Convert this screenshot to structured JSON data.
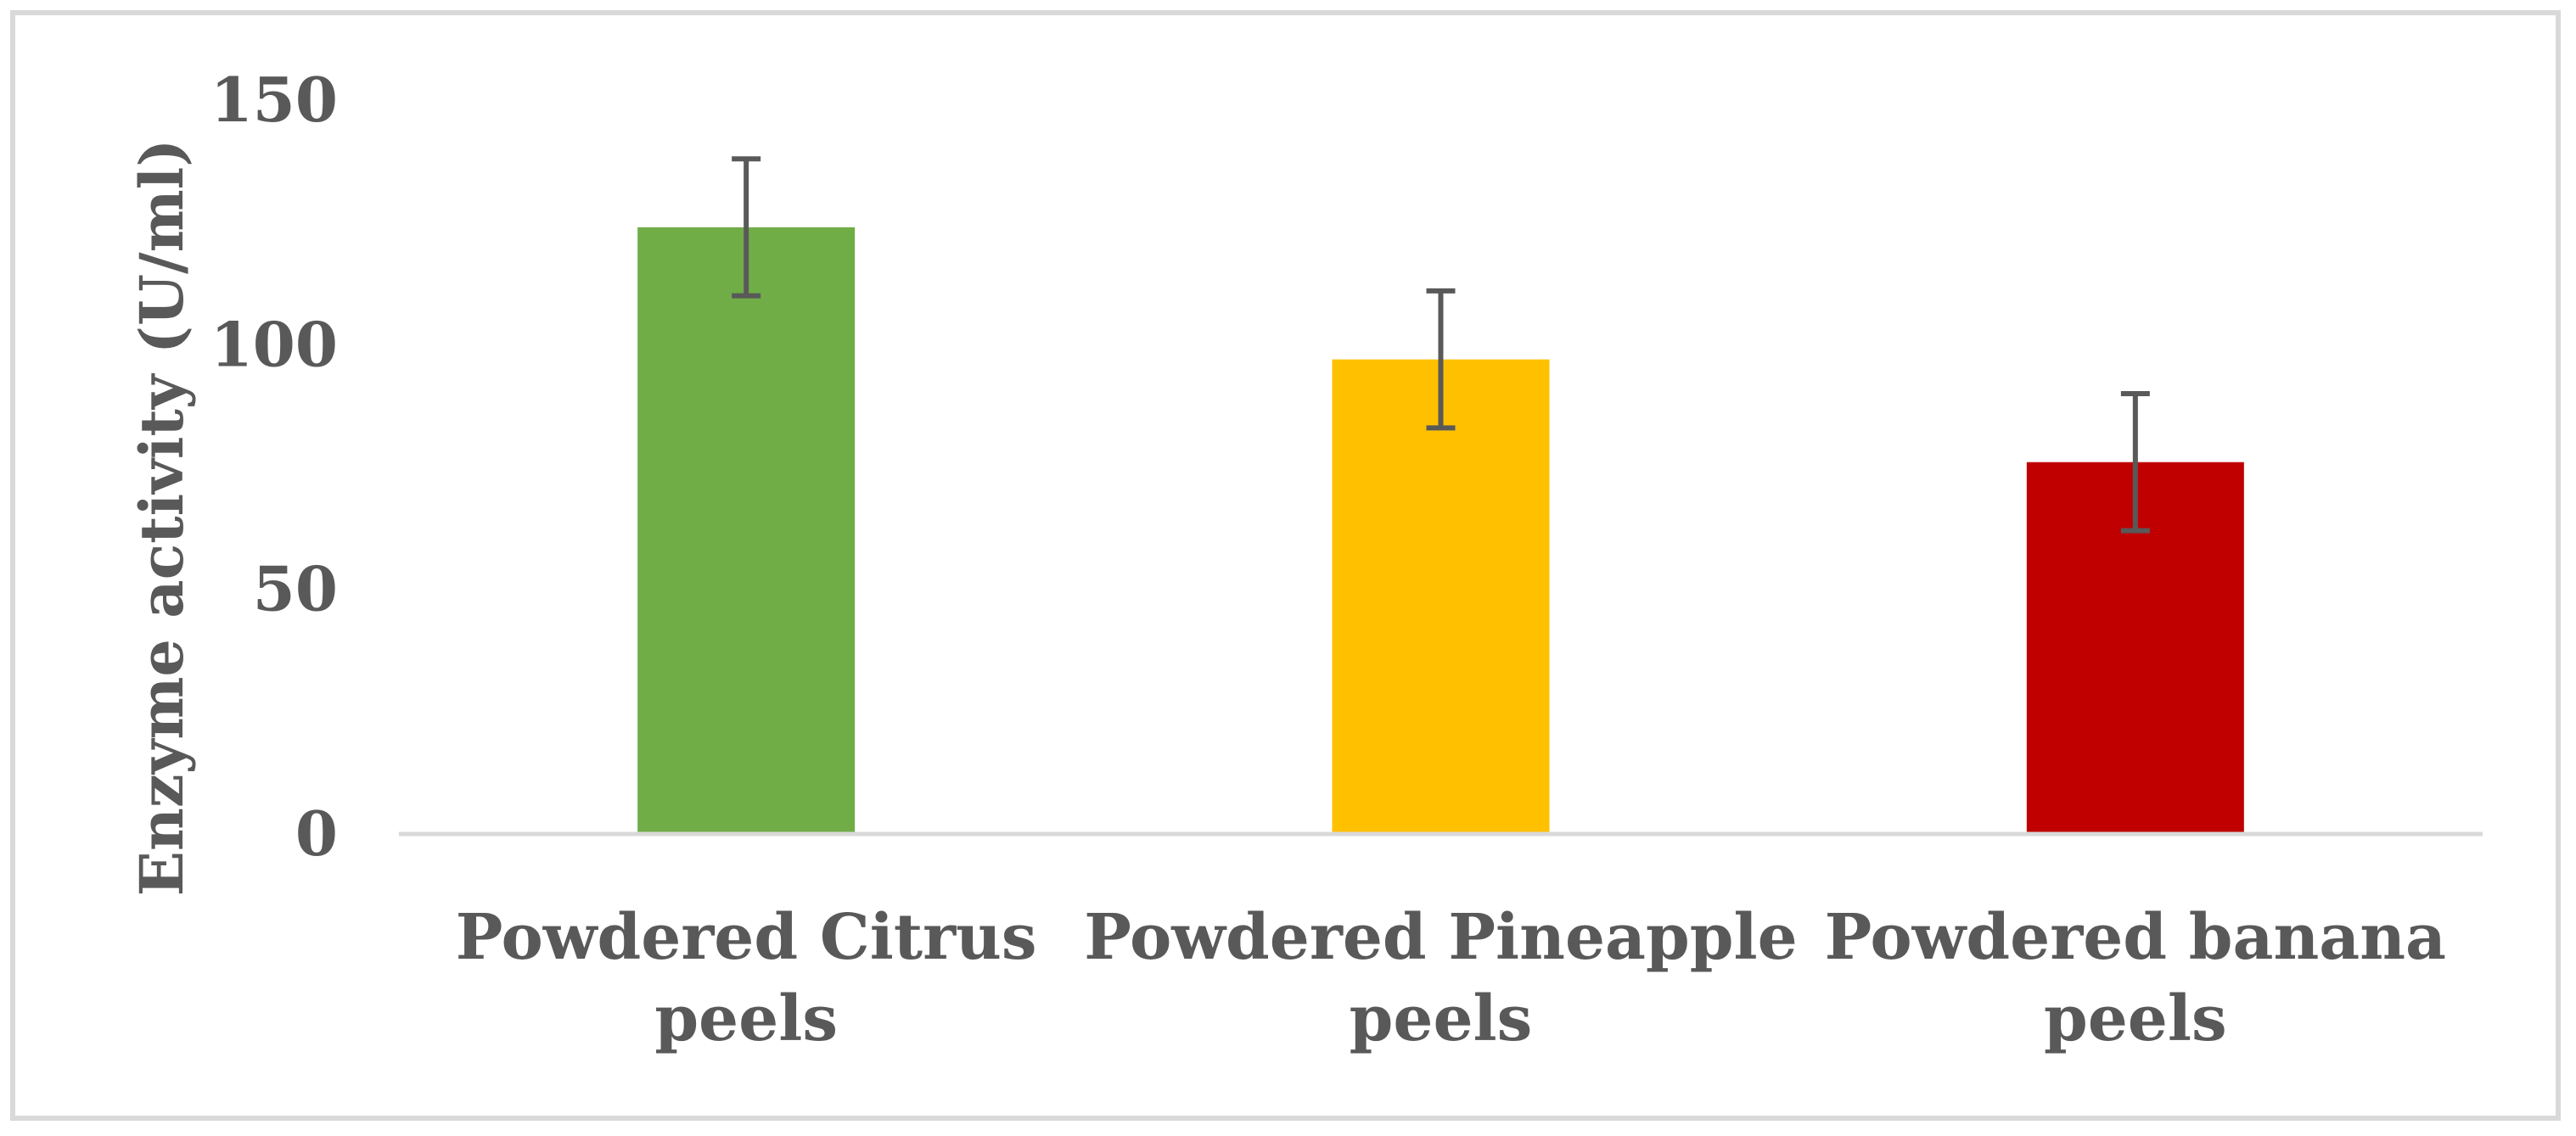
{
  "chart_data": {
    "type": "bar",
    "title": "",
    "xlabel": "",
    "ylabel": "Enzyme activity (U/ml)",
    "ylim": [
      0,
      150
    ],
    "yticks": [
      "0",
      "50",
      "100",
      "150"
    ],
    "grid": false,
    "legend": "none",
    "categories": [
      [
        "Powdered Citrus",
        "peels"
      ],
      [
        "Powdered Pineapple",
        "peels"
      ],
      [
        "Powdered banana",
        "peels"
      ]
    ],
    "values": [
      124,
      97,
      76
    ],
    "errors": [
      14,
      14,
      14
    ],
    "colors": [
      "#70ad47",
      "#ffc000",
      "#c00000"
    ],
    "error_bar_color": "#595959",
    "axis_color": "#d9d9d9",
    "text_color": "#595959"
  }
}
